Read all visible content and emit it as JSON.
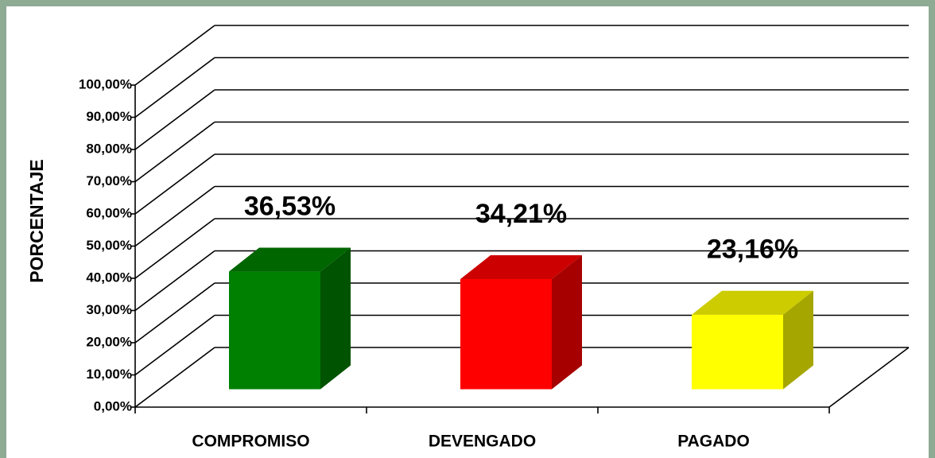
{
  "chart_data": {
    "type": "bar3d",
    "y_label": "PORCENTAJE",
    "categories": [
      "COMPROMISO",
      "DEVENGADO",
      "PAGADO"
    ],
    "values": [
      36.53,
      34.21,
      23.16
    ],
    "value_labels": [
      "36,53%",
      "34,21%",
      "23,16%"
    ],
    "colors": [
      "#008000",
      "#ff0000",
      "#ffff00"
    ],
    "ylim": [
      0,
      100
    ],
    "yticks": [
      {
        "value": 0,
        "label": "0,00%"
      },
      {
        "value": 10,
        "label": "10,00%"
      },
      {
        "value": 20,
        "label": "20,00%"
      },
      {
        "value": 30,
        "label": "30,00%"
      },
      {
        "value": 40,
        "label": "40,00%"
      },
      {
        "value": 50,
        "label": "50,00%"
      },
      {
        "value": 60,
        "label": "60,00%"
      },
      {
        "value": 70,
        "label": "70,00%"
      },
      {
        "value": 80,
        "label": "80,00%"
      },
      {
        "value": 90,
        "label": "90,00%"
      },
      {
        "value": 100,
        "label": "100,00%"
      }
    ],
    "grid": true
  }
}
